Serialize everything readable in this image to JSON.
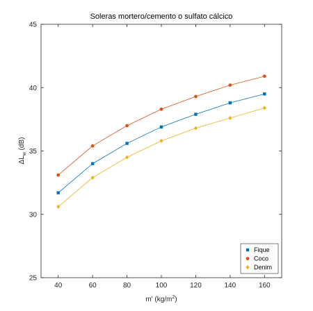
{
  "chart_data": {
    "type": "line",
    "title": "Soleras mortero/cemento o sulfato cálcico",
    "xlabel": {
      "prefix": "m' (kg/m",
      "superscript": "2",
      "suffix": ")"
    },
    "ylabel": {
      "prefix": "ΔL",
      "subscript": "w",
      "suffix": " (dB)"
    },
    "x": [
      40,
      60,
      80,
      100,
      120,
      140,
      160
    ],
    "xlim": [
      30,
      170
    ],
    "ylim": [
      25,
      45
    ],
    "xticks": [
      "40",
      "60",
      "80",
      "100",
      "120",
      "140",
      "160"
    ],
    "yticks": [
      "25",
      "30",
      "35",
      "40",
      "45"
    ],
    "grid": false,
    "legend_position": "bottom-right",
    "series": [
      {
        "name": "Fique",
        "color": "#0072BD",
        "marker": "square",
        "values": [
          31.7,
          34.0,
          35.6,
          36.9,
          37.9,
          38.8,
          39.5
        ]
      },
      {
        "name": "Coco",
        "color": "#D95319",
        "marker": "circle",
        "values": [
          33.1,
          35.4,
          37.0,
          38.3,
          39.3,
          40.2,
          40.9
        ]
      },
      {
        "name": "Denim",
        "color": "#EDB120",
        "marker": "diamond",
        "values": [
          30.6,
          32.9,
          34.5,
          35.8,
          36.8,
          37.6,
          38.4
        ]
      }
    ]
  }
}
